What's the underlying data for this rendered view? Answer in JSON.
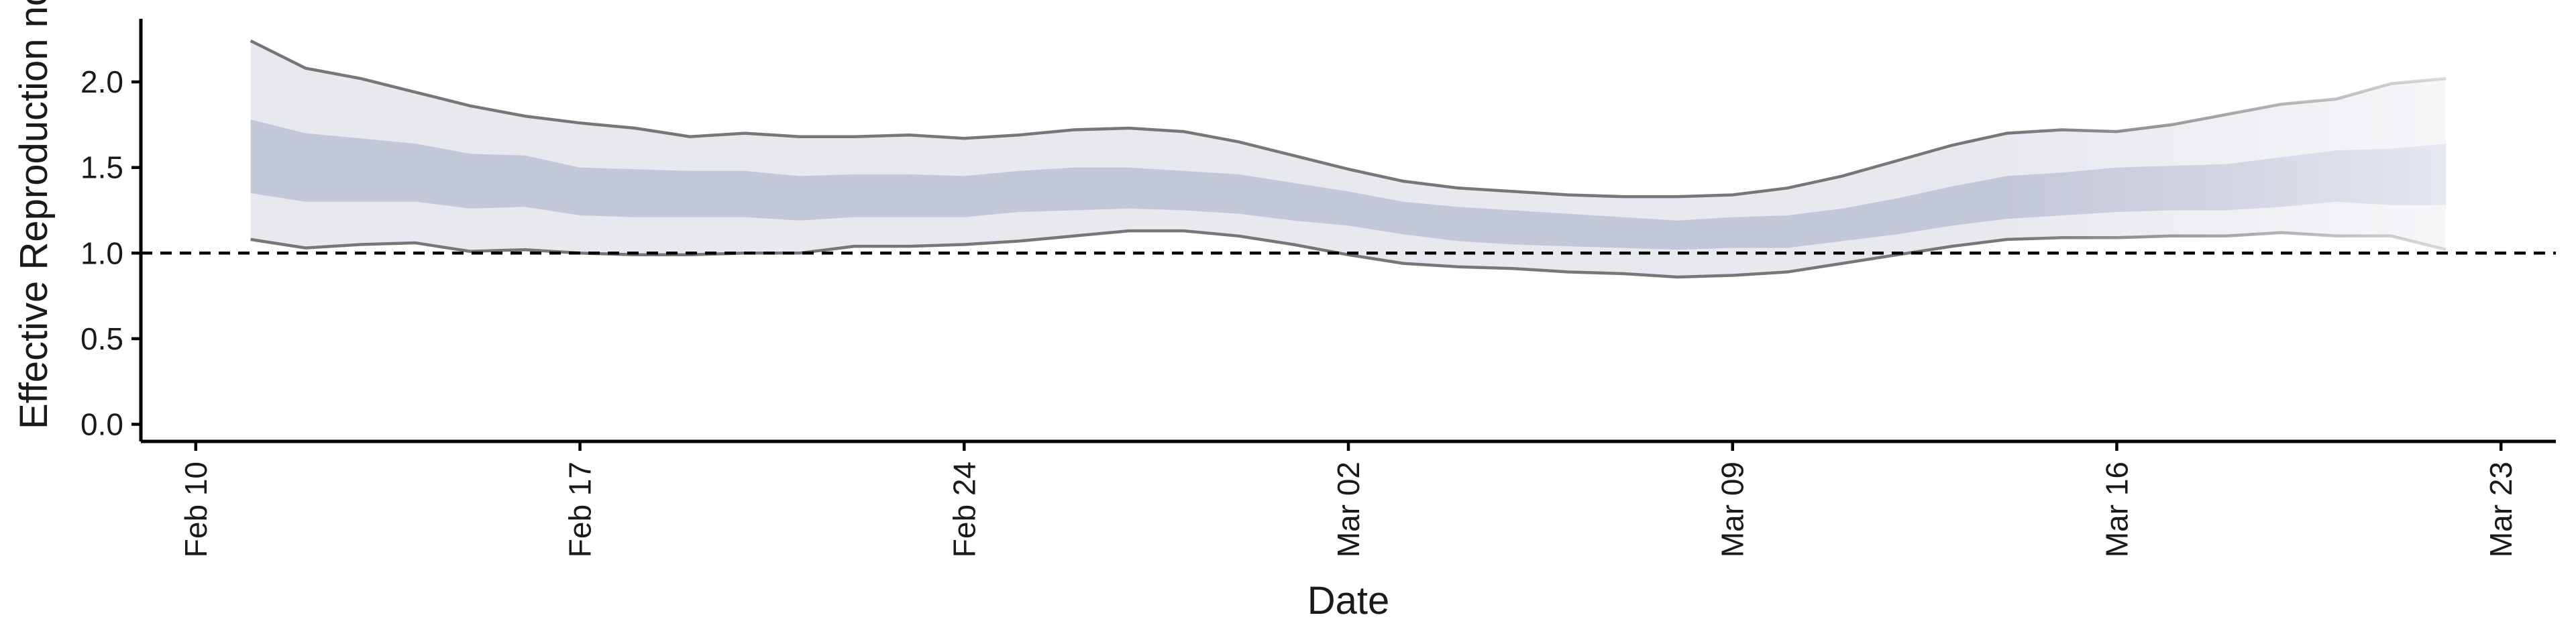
{
  "chart_data": {
    "type": "area",
    "title": "",
    "xlabel": "Date",
    "ylabel": "Effective Reproduction no",
    "ylim": [
      -0.1,
      2.4
    ],
    "yticks": [
      0.0,
      0.5,
      1.0,
      1.5,
      2.0
    ],
    "ytick_labels": [
      "0.0",
      "0.5",
      "1.0",
      "1.5",
      "2.0"
    ],
    "xlim": [
      "2020-02-09",
      "2020-03-24"
    ],
    "xticks": [
      "2020-02-10",
      "2020-02-17",
      "2020-02-24",
      "2020-03-02",
      "2020-03-09",
      "2020-03-16",
      "2020-03-23"
    ],
    "xtick_labels": [
      "Feb 10",
      "Feb 17",
      "Feb 24",
      "Mar 02",
      "Mar 09",
      "Mar 16",
      "Mar 23"
    ],
    "reference_line": {
      "y": 1.0,
      "style": "dashed",
      "color": "#000000"
    },
    "grid": false,
    "legend": "none",
    "colors": {
      "outer_band": "#e8e9ef",
      "inner_band": "#c3c8d9",
      "bound_line": "#777777",
      "axis": "#000000"
    },
    "dates": [
      "2020-02-11",
      "2020-02-12",
      "2020-02-13",
      "2020-02-14",
      "2020-02-15",
      "2020-02-16",
      "2020-02-17",
      "2020-02-18",
      "2020-02-19",
      "2020-02-20",
      "2020-02-21",
      "2020-02-22",
      "2020-02-23",
      "2020-02-24",
      "2020-02-25",
      "2020-02-26",
      "2020-02-27",
      "2020-02-28",
      "2020-02-29",
      "2020-03-01",
      "2020-03-02",
      "2020-03-03",
      "2020-03-04",
      "2020-03-05",
      "2020-03-06",
      "2020-03-07",
      "2020-03-08",
      "2020-03-09",
      "2020-03-10",
      "2020-03-11",
      "2020-03-12",
      "2020-03-13",
      "2020-03-14",
      "2020-03-15",
      "2020-03-16",
      "2020-03-17",
      "2020-03-18",
      "2020-03-19",
      "2020-03-20",
      "2020-03-21",
      "2020-03-22"
    ],
    "outer_upper": [
      2.24,
      2.08,
      2.02,
      1.94,
      1.86,
      1.8,
      1.76,
      1.73,
      1.68,
      1.7,
      1.68,
      1.68,
      1.69,
      1.67,
      1.69,
      1.72,
      1.73,
      1.71,
      1.65,
      1.57,
      1.49,
      1.42,
      1.38,
      1.36,
      1.34,
      1.33,
      1.33,
      1.34,
      1.38,
      1.45,
      1.54,
      1.63,
      1.7,
      1.72,
      1.71,
      1.75,
      1.81,
      1.87,
      1.9,
      1.99,
      2.02
    ],
    "inner_upper": [
      1.78,
      1.7,
      1.67,
      1.64,
      1.58,
      1.57,
      1.5,
      1.49,
      1.48,
      1.48,
      1.45,
      1.46,
      1.46,
      1.45,
      1.48,
      1.5,
      1.5,
      1.48,
      1.46,
      1.41,
      1.36,
      1.3,
      1.27,
      1.25,
      1.23,
      1.21,
      1.19,
      1.21,
      1.22,
      1.26,
      1.32,
      1.39,
      1.45,
      1.47,
      1.5,
      1.51,
      1.52,
      1.56,
      1.6,
      1.61,
      1.64
    ],
    "inner_lower": [
      1.35,
      1.3,
      1.3,
      1.3,
      1.26,
      1.27,
      1.22,
      1.21,
      1.21,
      1.21,
      1.19,
      1.21,
      1.21,
      1.21,
      1.24,
      1.25,
      1.26,
      1.25,
      1.23,
      1.19,
      1.16,
      1.11,
      1.07,
      1.05,
      1.04,
      1.03,
      1.02,
      1.03,
      1.03,
      1.07,
      1.11,
      1.16,
      1.2,
      1.22,
      1.24,
      1.25,
      1.25,
      1.27,
      1.3,
      1.28,
      1.28
    ],
    "outer_lower": [
      1.08,
      1.03,
      1.05,
      1.06,
      1.01,
      1.02,
      1.0,
      0.99,
      0.99,
      1.0,
      1.0,
      1.04,
      1.04,
      1.05,
      1.07,
      1.1,
      1.13,
      1.13,
      1.1,
      1.05,
      0.99,
      0.94,
      0.92,
      0.91,
      0.89,
      0.88,
      0.86,
      0.87,
      0.89,
      0.94,
      0.99,
      1.04,
      1.08,
      1.09,
      1.09,
      1.1,
      1.1,
      1.12,
      1.1,
      1.1,
      1.02
    ]
  }
}
